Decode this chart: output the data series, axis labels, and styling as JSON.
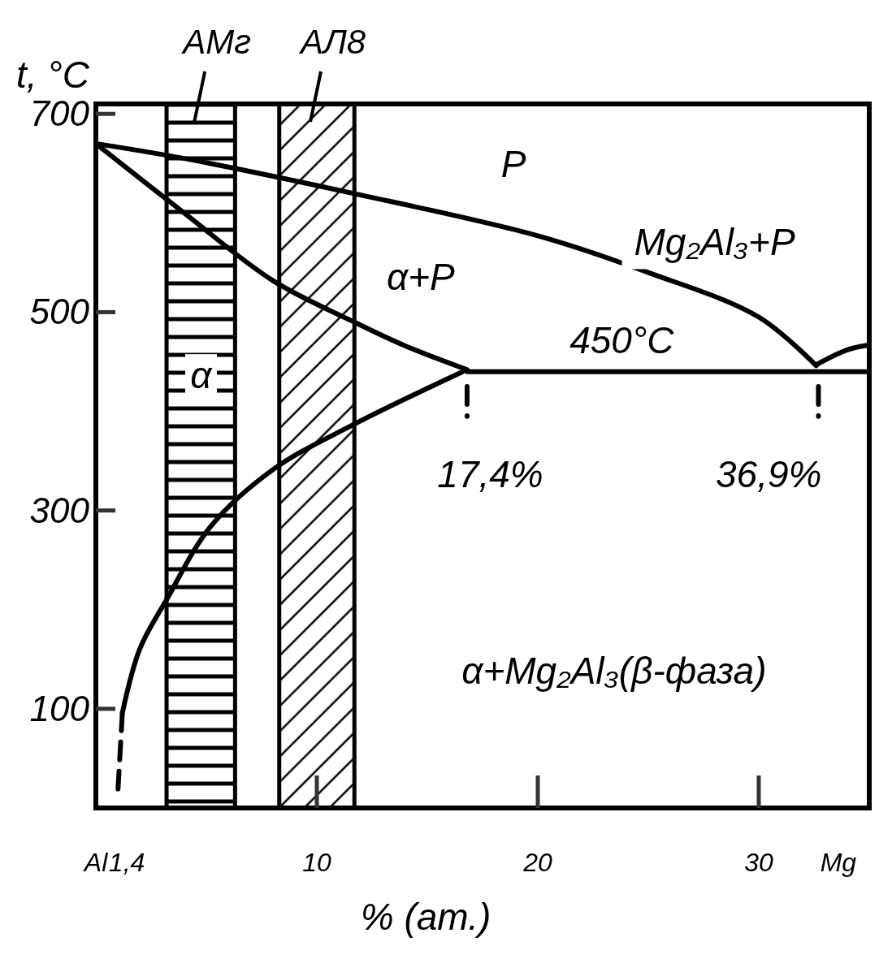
{
  "chart_data": {
    "type": "line",
    "xlabel": "% (ат.)",
    "ylabel": "t, °C",
    "xlim": [
      0,
      35
    ],
    "ylim": [
      0,
      710
    ],
    "xticks": [
      {
        "value": 0,
        "label": "Al"
      },
      {
        "value": 1.4,
        "label": "1,4"
      },
      10,
      20,
      30,
      {
        "value": 33.6,
        "label": "Mg"
      }
    ],
    "yticks": [
      100,
      300,
      500,
      700
    ],
    "grid": false,
    "series": [
      {
        "color": "#000000",
        "x": [
          0,
          4,
          11.6,
          20,
          25,
          30,
          32.6
        ],
        "values": [
          670,
          655,
          620,
          577,
          540,
          495,
          446
        ]
      },
      {
        "color": "#000000",
        "x": [
          0,
          4,
          8,
          11.6,
          14,
          16.8
        ],
        "values": [
          670,
          600,
          532,
          491,
          466,
          442
        ]
      },
      {
        "color": "#000000",
        "x": [
          16.6,
          11.6,
          8,
          5.2,
          3.2,
          2,
          1.2
        ],
        "values": [
          440,
          386,
          341,
          284,
          210,
          161,
          96
        ]
      },
      {
        "color": "#000000",
        "line_style": "dashed",
        "x": [
          1.2,
          1.0
        ],
        "values": [
          96,
          18
        ]
      },
      {
        "color": "#000000",
        "x": [
          16.8,
          35
        ],
        "values": [
          440,
          440
        ]
      },
      {
        "color": "#000000",
        "x": [
          32.6,
          34,
          35
        ],
        "values": [
          447,
          462,
          467
        ]
      },
      {
        "color": "#000000",
        "line_style": "dashed",
        "x": [
          16.8,
          16.8
        ],
        "values": [
          425,
          395
        ]
      },
      {
        "color": "#000000",
        "line_style": "dashed",
        "x": [
          32.7,
          32.7
        ],
        "values": [
          425,
          395
        ]
      }
    ],
    "bands": [
      {
        "axis": "x",
        "from": 3.2,
        "to": 6.3,
        "label": "АМг",
        "color": "#000000"
      },
      {
        "axis": "x",
        "from": 8.3,
        "to": 11.7,
        "label": "АЛ8",
        "color": "#000000"
      }
    ],
    "annotations": [
      "P",
      "Mg₂Al₃+P",
      "α+P",
      "450°C",
      "α",
      "α+Mg₂Al₃(β-фаза)",
      "17,4%",
      "36,9%"
    ]
  }
}
